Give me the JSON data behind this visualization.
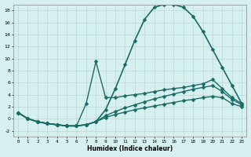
{
  "xlabel": "Humidex (Indice chaleur)",
  "background_color": "#d6f0ef",
  "grid_color": "#b8d8d6",
  "line_color": "#1a6b65",
  "xlim": [
    -0.5,
    23.5
  ],
  "ylim": [
    -3,
    19
  ],
  "xticks": [
    0,
    1,
    2,
    3,
    4,
    5,
    6,
    7,
    8,
    9,
    10,
    11,
    12,
    13,
    14,
    15,
    16,
    17,
    18,
    19,
    20,
    21,
    22,
    23
  ],
  "yticks": [
    -2,
    0,
    2,
    4,
    6,
    8,
    10,
    12,
    14,
    16,
    18
  ],
  "series": [
    {
      "x": [
        0,
        1,
        2,
        3,
        4,
        5,
        6,
        7,
        8,
        9,
        10,
        11,
        12,
        13,
        14,
        15,
        16,
        17,
        18,
        19,
        20,
        21,
        22,
        23
      ],
      "y": [
        1,
        0,
        -0.5,
        -0.8,
        -1.0,
        -1.2,
        -1.2,
        -1.0,
        -0.5,
        1.5,
        5.0,
        9.0,
        13.0,
        16.5,
        18.5,
        19.0,
        19.0,
        18.5,
        17.0,
        14.5,
        11.5,
        8.5,
        5.5,
        2.5
      ],
      "markersize": 2.5,
      "linewidth": 1.2
    },
    {
      "x": [
        0,
        1,
        2,
        3,
        4,
        5,
        6,
        7,
        8,
        9,
        10,
        11,
        12,
        13,
        14,
        15,
        16,
        17,
        18,
        19,
        20,
        21,
        22,
        23
      ],
      "y": [
        1,
        0,
        -0.5,
        -0.8,
        -1.0,
        -1.2,
        -1.2,
        2.5,
        9.5,
        3.5,
        3.5,
        3.8,
        4.0,
        4.2,
        4.5,
        4.8,
        5.0,
        5.2,
        5.5,
        5.8,
        6.5,
        5.0,
        3.5,
        2.5
      ],
      "markersize": 2.5,
      "linewidth": 1.0
    },
    {
      "x": [
        0,
        1,
        2,
        3,
        4,
        5,
        6,
        7,
        8,
        9,
        10,
        11,
        12,
        13,
        14,
        15,
        16,
        17,
        18,
        19,
        20,
        21,
        22,
        23
      ],
      "y": [
        1,
        0,
        -0.5,
        -0.8,
        -1.0,
        -1.2,
        -1.2,
        -1.0,
        -0.5,
        0.5,
        1.2,
        1.8,
        2.3,
        2.8,
        3.3,
        3.7,
        4.1,
        4.5,
        4.9,
        5.2,
        5.5,
        4.5,
        3.2,
        2.3
      ],
      "markersize": 2.5,
      "linewidth": 1.0
    },
    {
      "x": [
        0,
        1,
        2,
        3,
        4,
        5,
        6,
        7,
        8,
        9,
        10,
        11,
        12,
        13,
        14,
        15,
        16,
        17,
        18,
        19,
        20,
        21,
        22,
        23
      ],
      "y": [
        1,
        0,
        -0.5,
        -0.8,
        -1.0,
        -1.2,
        -1.2,
        -1.0,
        -0.5,
        0.2,
        0.7,
        1.1,
        1.5,
        1.8,
        2.1,
        2.4,
        2.7,
        3.0,
        3.2,
        3.5,
        3.7,
        3.5,
        2.5,
        2.0
      ],
      "markersize": 2.5,
      "linewidth": 1.0
    }
  ]
}
